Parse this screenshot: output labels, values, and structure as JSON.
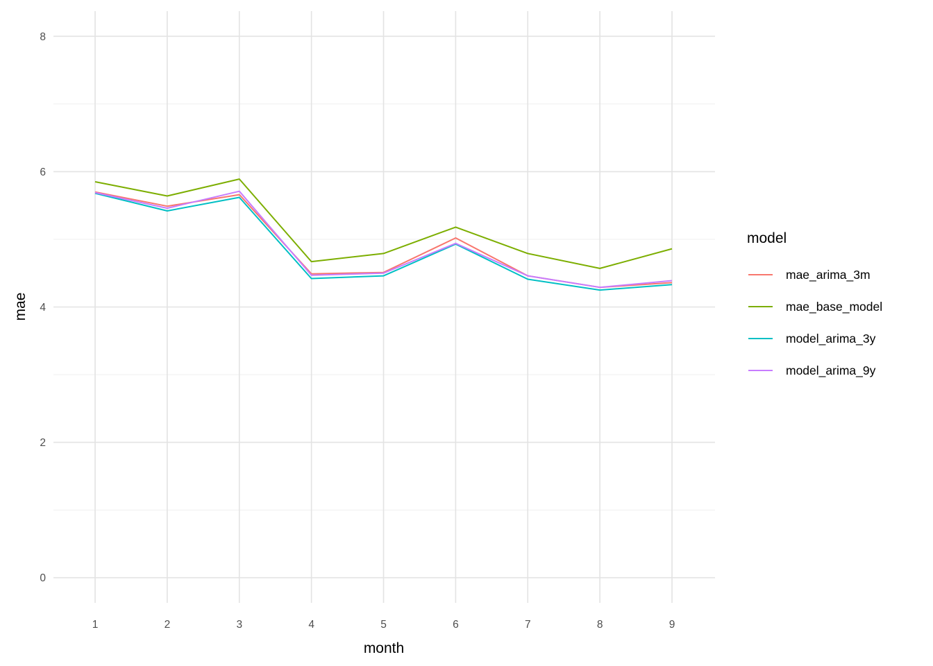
{
  "chart_data": {
    "type": "line",
    "title": "",
    "xlabel": "month",
    "ylabel": "mae",
    "x": [
      1,
      2,
      3,
      4,
      5,
      6,
      7,
      8,
      9
    ],
    "xlim": [
      0.4,
      9.6
    ],
    "ylim": [
      0,
      8
    ],
    "x_tick_labels": [
      "1",
      "2",
      "3",
      "4",
      "5",
      "6",
      "7",
      "8",
      "9"
    ],
    "y_major_ticks": [
      0,
      2,
      4,
      6,
      8
    ],
    "y_tick_labels": [
      "0",
      "2",
      "4",
      "6",
      "8"
    ],
    "y_minor_gridlines": [
      1,
      3,
      5,
      7
    ],
    "grid": true,
    "legend_position": "right",
    "legend_title": "model",
    "series": [
      {
        "name": "mae_arima_3m",
        "color": "#F8766D",
        "values": [
          5.7,
          5.49,
          5.66,
          4.49,
          4.51,
          5.02,
          4.46,
          4.29,
          4.36
        ]
      },
      {
        "name": "mae_base_model",
        "color": "#7CAE00",
        "values": [
          5.85,
          5.64,
          5.89,
          4.67,
          4.79,
          5.18,
          4.79,
          4.57,
          4.86
        ]
      },
      {
        "name": "model_arima_3y",
        "color": "#00BFC4",
        "values": [
          5.68,
          5.42,
          5.62,
          4.42,
          4.46,
          4.93,
          4.41,
          4.25,
          4.33
        ]
      },
      {
        "name": "model_arima_9y",
        "color": "#C77CFF",
        "values": [
          5.69,
          5.46,
          5.71,
          4.47,
          4.5,
          4.94,
          4.46,
          4.29,
          4.39
        ]
      }
    ]
  },
  "colors": {
    "background": "#FFFFFF",
    "grid_major": "#E3E3E3",
    "grid_minor": "#F1F1F1",
    "tick_label": "#4D4D4D",
    "axis_title": "#000000",
    "legend_text": "#000000"
  }
}
